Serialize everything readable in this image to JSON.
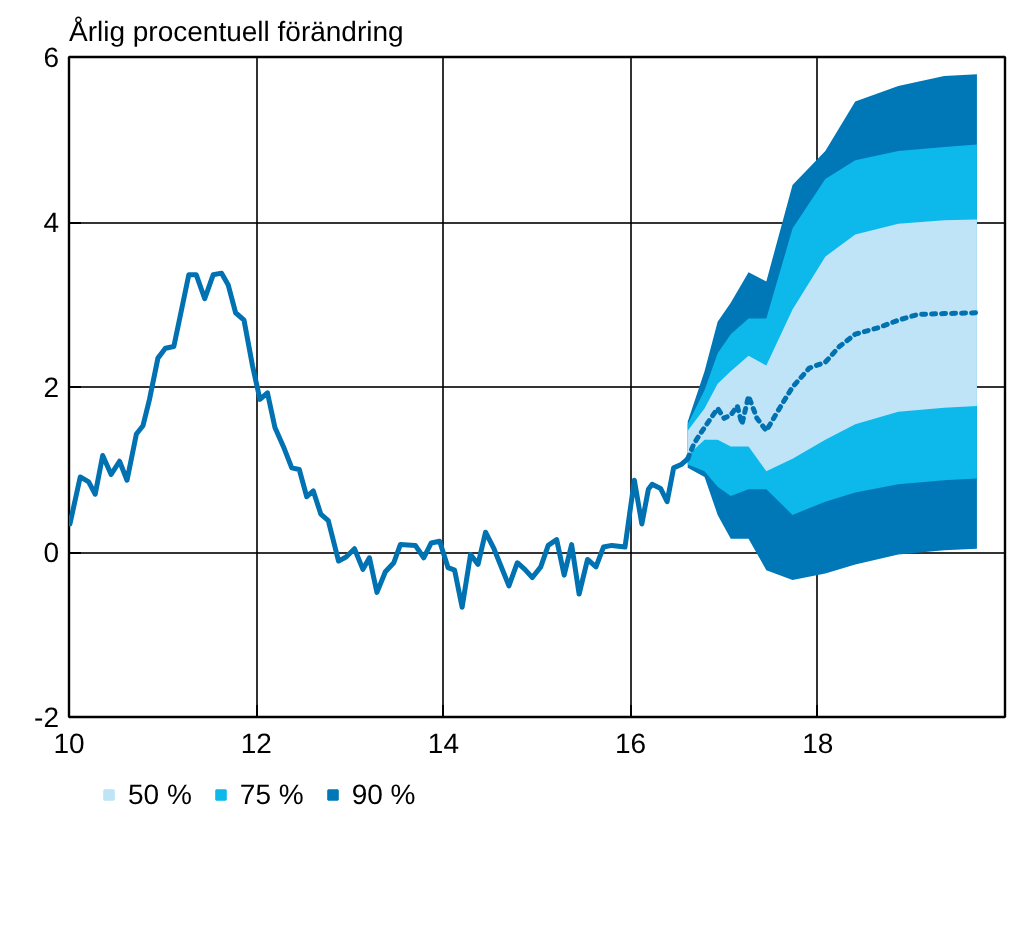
{
  "chart_data": {
    "type": "line",
    "ylabel": "Årlig procentuell förändring",
    "xlim": [
      10,
      20
    ],
    "xticks": [
      10,
      12,
      14,
      16,
      18
    ],
    "ylim": [
      -2,
      6
    ],
    "yticks": [
      -2,
      0,
      2,
      4,
      6
    ],
    "grid": true,
    "legend": "bottom left",
    "series": [
      {
        "name": "90 %",
        "color": "#0077b6",
        "x": [
          16.61,
          16.79,
          16.93,
          17.07,
          17.26,
          17.45,
          17.73,
          18.08,
          18.4,
          18.86,
          19.35,
          19.7
        ],
        "values": [
          null,
          null,
          null,
          null,
          null,
          null,
          null,
          null,
          null,
          null,
          null,
          null
        ],
        "lower": [
          1.02,
          0.91,
          0.45,
          0.16,
          0.16,
          -0.22,
          -0.34,
          -0.26,
          -0.15,
          -0.03,
          0.02,
          0.04
        ],
        "upper": [
          1.58,
          2.19,
          2.79,
          3.02,
          3.39,
          3.28,
          4.45,
          4.86,
          5.46,
          5.65,
          5.77,
          5.79
        ]
      },
      {
        "name": "75 %",
        "color": "#0cb9ea",
        "x": [
          16.61,
          16.79,
          16.93,
          17.07,
          17.26,
          17.45,
          17.73,
          18.08,
          18.4,
          18.86,
          19.35,
          19.7
        ],
        "values": [
          null,
          null,
          null,
          null,
          null,
          null,
          null,
          null,
          null,
          null,
          null,
          null
        ],
        "lower": [
          1.06,
          0.98,
          0.79,
          0.68,
          0.76,
          0.76,
          0.45,
          0.61,
          0.72,
          0.82,
          0.87,
          0.89
        ],
        "upper": [
          1.55,
          1.96,
          2.41,
          2.64,
          2.83,
          2.83,
          3.92,
          4.52,
          4.75,
          4.86,
          4.91,
          4.94
        ]
      },
      {
        "name": "50 %",
        "color": "#bfe4f8",
        "x": [
          16.61,
          16.79,
          16.93,
          17.07,
          17.26,
          17.45,
          17.73,
          18.08,
          18.4,
          18.86,
          19.35,
          19.7
        ],
        "values": [
          null,
          null,
          null,
          null,
          null,
          null,
          null,
          null,
          null,
          null,
          null,
          null
        ],
        "lower": [
          1.17,
          1.36,
          1.36,
          1.28,
          1.28,
          0.98,
          1.13,
          1.36,
          1.55,
          1.7,
          1.75,
          1.77
        ],
        "upper": [
          1.47,
          1.74,
          2.04,
          2.19,
          2.38,
          2.26,
          2.94,
          3.58,
          3.85,
          3.98,
          4.02,
          4.03
        ]
      },
      {
        "type": "line",
        "color": "#0072b2",
        "line_style": "solid",
        "x": [
          10.01,
          10.12,
          10.21,
          10.28,
          10.36,
          10.45,
          10.54,
          10.62,
          10.72,
          10.79,
          10.86,
          10.95,
          11.03,
          11.12,
          11.21,
          11.28,
          11.36,
          11.45,
          11.54,
          11.63,
          11.7,
          11.78,
          11.87,
          11.96,
          12.04,
          12.12,
          12.2,
          12.29,
          12.38,
          12.46,
          12.54,
          12.61,
          12.69,
          12.77,
          12.88,
          12.96,
          13.05,
          13.14,
          13.21,
          13.29,
          13.38,
          13.47,
          13.54,
          13.7,
          13.79,
          13.87,
          13.96,
          14.05,
          14.12,
          14.2,
          14.29,
          14.37,
          14.45,
          14.54,
          14.7,
          14.79,
          14.87,
          14.95,
          15.04,
          15.12,
          15.21,
          15.29,
          15.37,
          15.45,
          15.54,
          15.63,
          15.71,
          15.8,
          15.94,
          16.04,
          16.12,
          16.19,
          16.23,
          16.32,
          16.39,
          16.46,
          16.54,
          16.61
        ],
        "values": [
          0.34,
          0.91,
          0.85,
          0.7,
          1.17,
          0.94,
          1.1,
          0.87,
          1.43,
          1.53,
          1.85,
          2.35,
          2.47,
          2.49,
          2.98,
          3.36,
          3.36,
          3.07,
          3.36,
          3.38,
          3.24,
          2.9,
          2.81,
          2.26,
          1.85,
          1.93,
          1.51,
          1.28,
          1.02,
          1.0,
          0.67,
          0.74,
          0.46,
          0.38,
          -0.11,
          -0.06,
          0.04,
          -0.21,
          -0.07,
          -0.49,
          -0.24,
          -0.13,
          0.09,
          0.08,
          -0.07,
          0.11,
          0.13,
          -0.19,
          -0.22,
          -0.67,
          -0.03,
          -0.15,
          0.24,
          0.04,
          -0.41,
          -0.13,
          -0.21,
          -0.31,
          -0.18,
          0.08,
          0.15,
          -0.28,
          0.09,
          -0.51,
          -0.09,
          -0.18,
          0.06,
          0.08,
          0.06,
          0.87,
          0.34,
          0.76,
          0.82,
          0.77,
          0.61,
          1.02,
          1.06,
          1.13
        ]
      },
      {
        "type": "line",
        "color": "#0072b2",
        "line_style": "dotted",
        "x": [
          16.61,
          16.68,
          16.79,
          16.93,
          17.0,
          17.07,
          17.14,
          17.19,
          17.26,
          17.35,
          17.45,
          17.59,
          17.73,
          17.91,
          18.08,
          18.23,
          18.4,
          18.65,
          18.86,
          19.07,
          19.35,
          19.7
        ],
        "values": [
          1.13,
          1.32,
          1.51,
          1.74,
          1.62,
          1.66,
          1.77,
          1.55,
          1.89,
          1.62,
          1.47,
          1.74,
          2.0,
          2.23,
          2.3,
          2.49,
          2.64,
          2.72,
          2.81,
          2.88,
          2.89,
          2.9
        ]
      }
    ]
  }
}
